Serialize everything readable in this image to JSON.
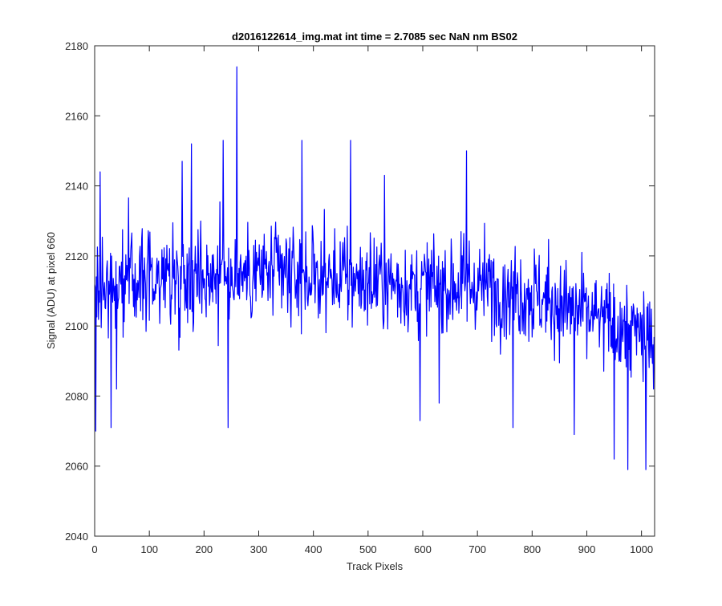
{
  "chart_data": {
    "type": "line",
    "title": "d2016122614_img.mat int time = 2.7085 sec  NaN nm BS02",
    "xlabel": "Track Pixels",
    "ylabel": "Signal (ADU) at pixel 660",
    "xlim": [
      0,
      1024
    ],
    "ylim": [
      2040,
      2180
    ],
    "xticks": [
      "0",
      "100",
      "200",
      "300",
      "400",
      "500",
      "600",
      "700",
      "800",
      "900",
      "1000"
    ],
    "yticks": [
      "2040",
      "2060",
      "2080",
      "2100",
      "2120",
      "2140",
      "2160",
      "2180"
    ],
    "grid": false,
    "series": [
      {
        "color": "#0000ff",
        "n_points": 1024,
        "trend": [
          [
            0,
            2112
          ],
          [
            100,
            2114
          ],
          [
            200,
            2115
          ],
          [
            300,
            2115
          ],
          [
            400,
            2114
          ],
          [
            500,
            2113
          ],
          [
            600,
            2111
          ],
          [
            700,
            2112
          ],
          [
            800,
            2109
          ],
          [
            900,
            2103
          ],
          [
            1024,
            2096
          ]
        ],
        "noise_amplitude": 13,
        "notable_points": [
          [
            2,
            2070
          ],
          [
            10,
            2144
          ],
          [
            30,
            2071
          ],
          [
            40,
            2082
          ],
          [
            160,
            2147
          ],
          [
            177,
            2152
          ],
          [
            235,
            2153
          ],
          [
            244,
            2071
          ],
          [
            260,
            2174
          ],
          [
            379,
            2153
          ],
          [
            468,
            2153
          ],
          [
            530,
            2143
          ],
          [
            595,
            2073
          ],
          [
            630,
            2078
          ],
          [
            680,
            2150
          ],
          [
            765,
            2071
          ],
          [
            877,
            2069
          ],
          [
            950,
            2062
          ],
          [
            975,
            2059
          ],
          [
            1008,
            2059
          ],
          [
            1022,
            2082
          ]
        ]
      }
    ]
  }
}
